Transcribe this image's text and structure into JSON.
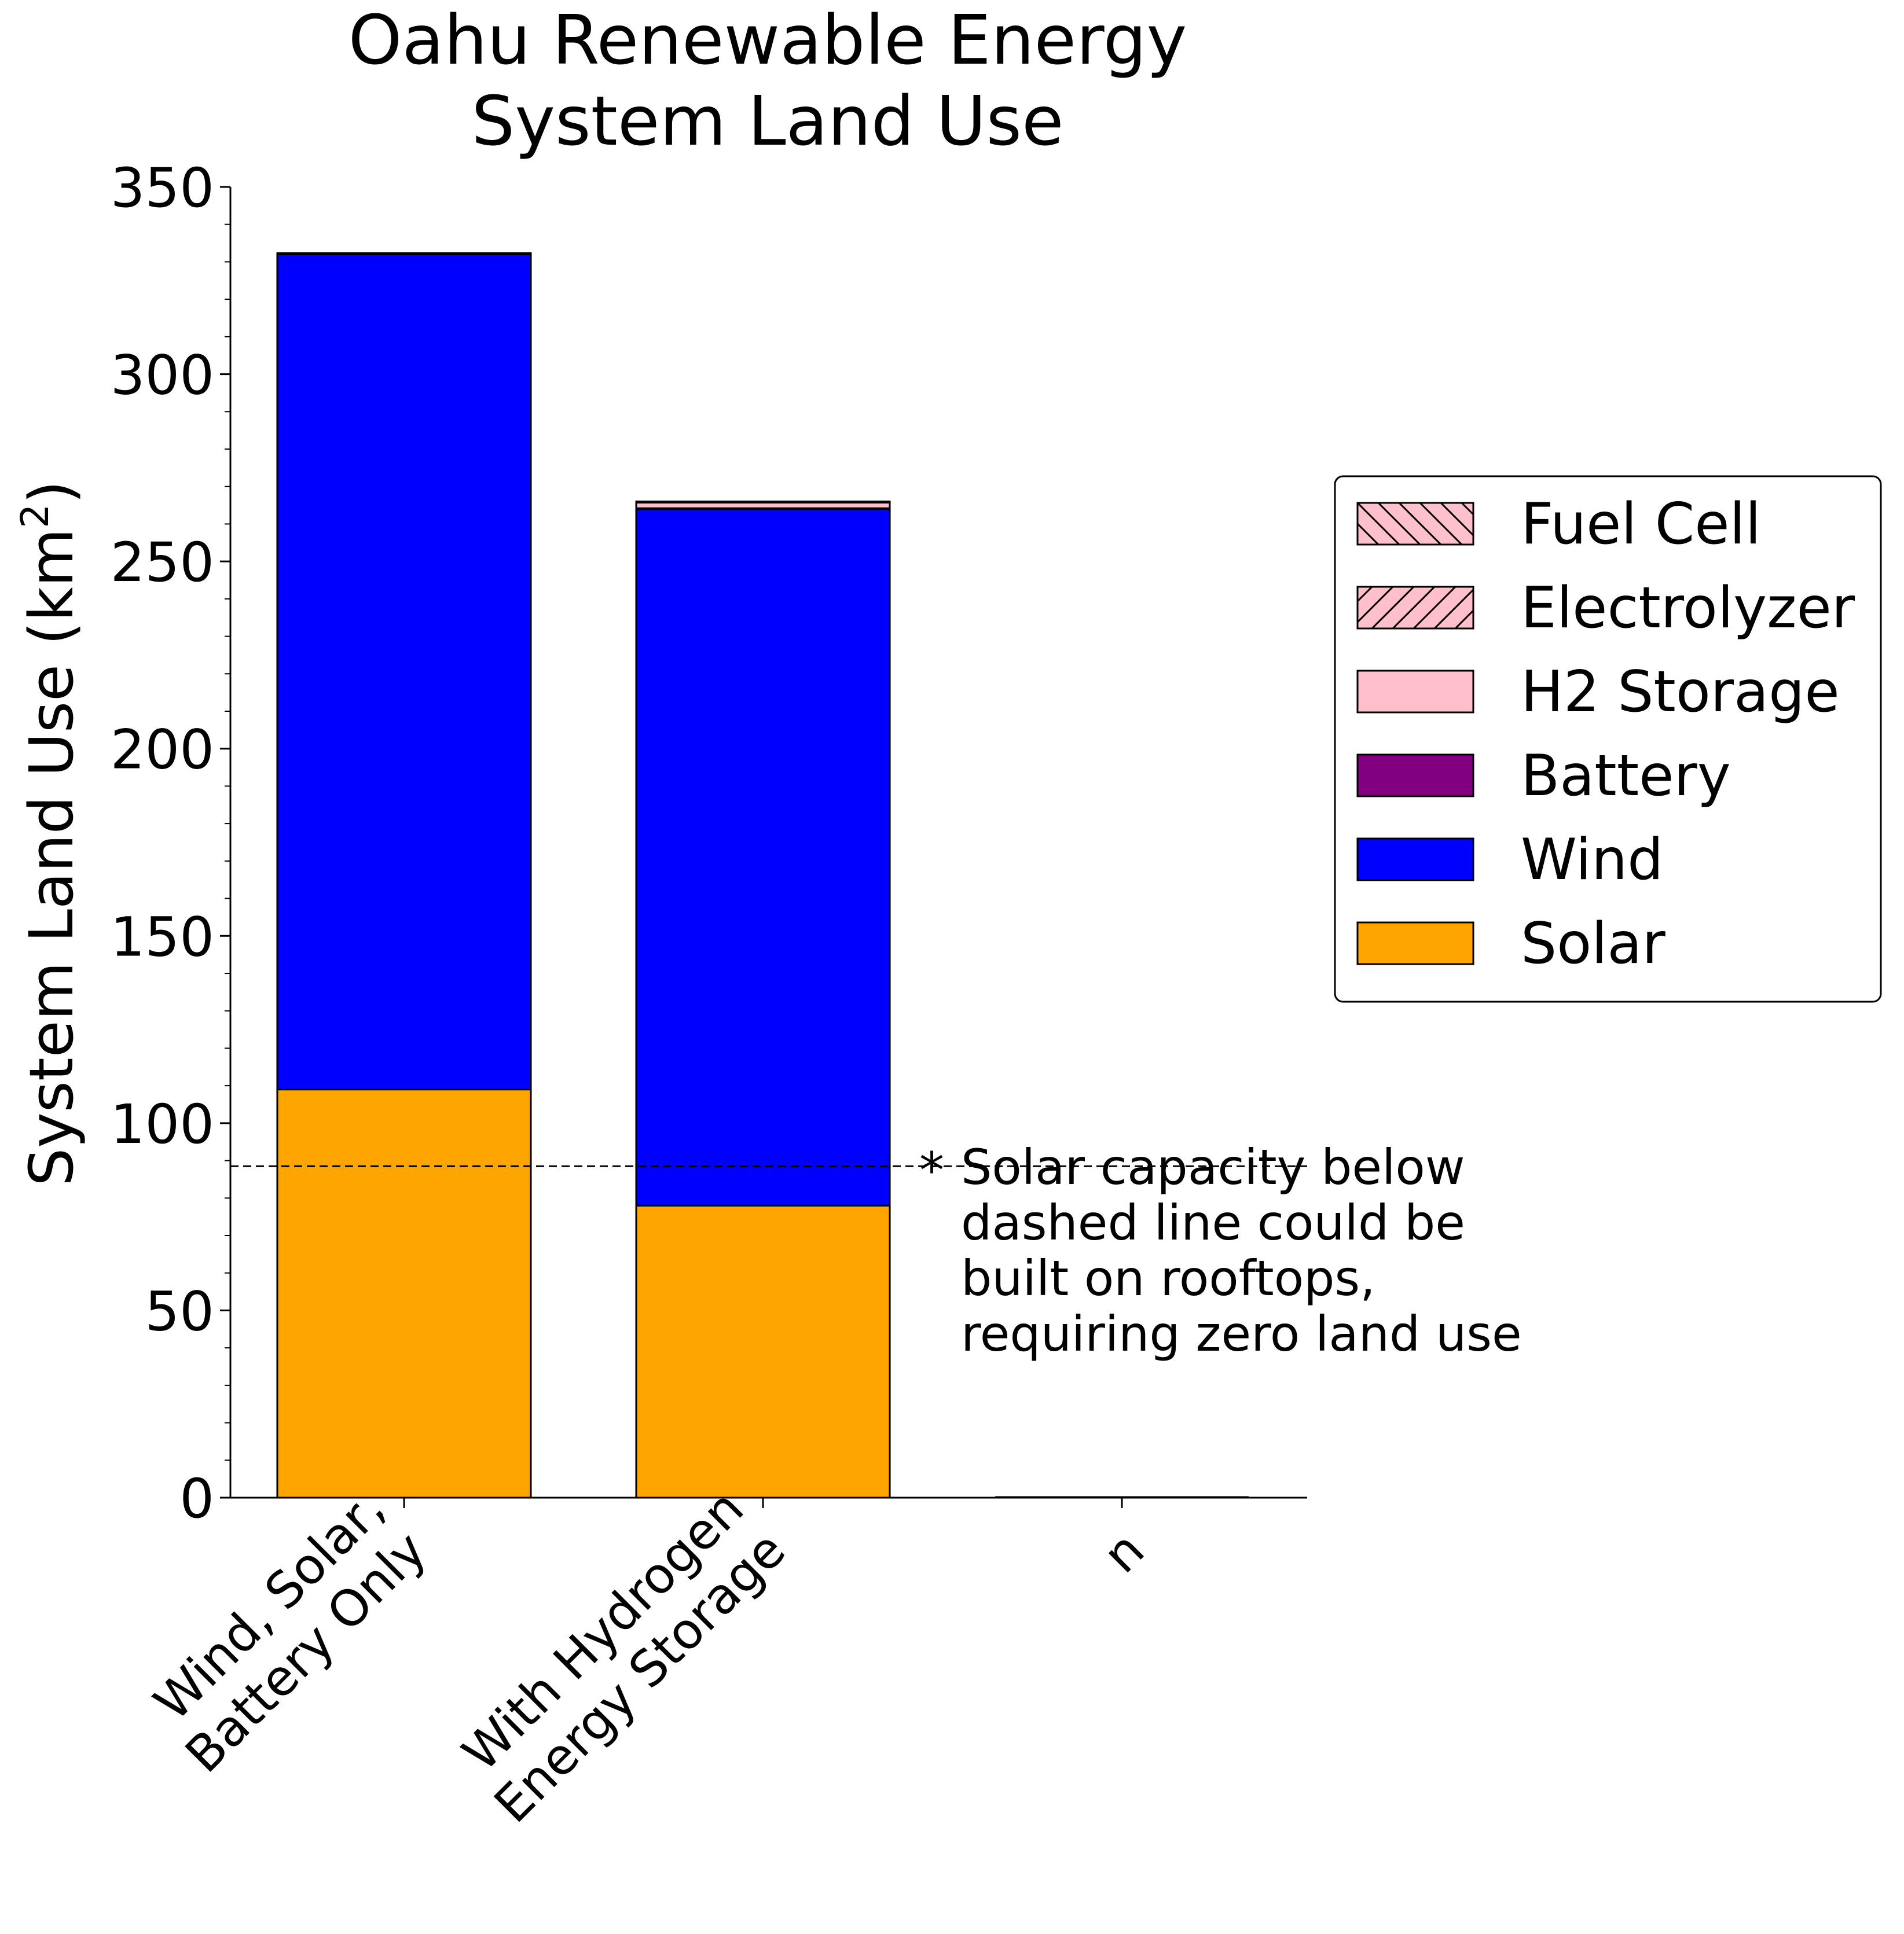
{
  "chart_data": {
    "type": "bar",
    "stacked": true,
    "title_lines": [
      "Oahu Renewable Energy",
      "System Land Use"
    ],
    "ylabel": "System Land Use (km",
    "ylabel_sup": "2",
    "ylabel_close": ")",
    "xlabel": "",
    "ylim": [
      0,
      350
    ],
    "yticks": [
      "0",
      "50",
      "100",
      "150",
      "200",
      "250",
      "300",
      "350"
    ],
    "categories": [
      [
        "Wind, Solar,",
        "Battery Only"
      ],
      [
        "With Hydrogen",
        "Energy Storage"
      ],
      [
        "n"
      ]
    ],
    "series": [
      {
        "name": "Solar",
        "color": "#FFA500",
        "hatch": "none",
        "values": [
          109,
          78,
          0
        ]
      },
      {
        "name": "Wind",
        "color": "#0000FF",
        "hatch": "none",
        "values": [
          223,
          186,
          0
        ]
      },
      {
        "name": "Battery",
        "color": "#800080",
        "hatch": "none",
        "values": [
          0.3,
          0.2,
          0
        ]
      },
      {
        "name": "H2 Storage",
        "color": "#FFC0CB",
        "hatch": "none",
        "values": [
          0,
          1.5,
          0
        ]
      },
      {
        "name": "Electrolyzer",
        "color": "#FFC0CB",
        "hatch": "forward",
        "values": [
          0,
          0.2,
          0
        ]
      },
      {
        "name": "Fuel Cell",
        "color": "#FFC0CB",
        "hatch": "back",
        "values": [
          0,
          0.1,
          0
        ]
      }
    ],
    "legend_order": [
      "Fuel Cell",
      "Electrolyzer",
      "H2 Storage",
      "Battery",
      "Wind",
      "Solar"
    ],
    "legend_position": "right",
    "reference_line": {
      "value": 88.5,
      "style": "dashed"
    },
    "annotation": {
      "marker": "*",
      "lines": [
        "Solar capacity below",
        "dashed line could be",
        "built on rooftops,",
        "requiring zero land use"
      ]
    },
    "grid": false
  }
}
